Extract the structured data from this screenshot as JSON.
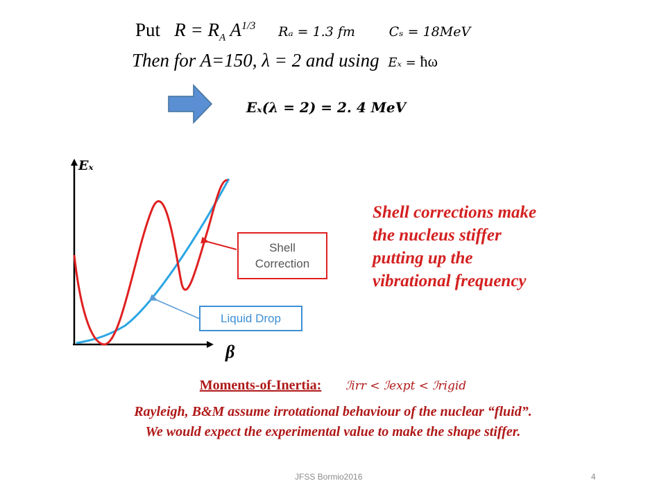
{
  "heading": {
    "put_word": "Put",
    "formula_R": "R = R",
    "sub_A": "A",
    "formula_A": " A",
    "sup_exp": "1/3",
    "RA_value": "Rₐ = 1.3 fm",
    "Cs_value": "Cₛ = 18MeV"
  },
  "then_line": {
    "text": "Then for  A=150,  λ = 2  and using",
    "Ex_eq": "Eₓ = ",
    "hbar_omega": "ħω"
  },
  "result": {
    "text": "Eₓ(λ = 2) = 2. 4 MeV"
  },
  "plot": {
    "y_label": "Eₓ",
    "x_label": "β",
    "colors": {
      "shell": "#e02020",
      "liquid": "#2ba6e4",
      "axis": "#000000",
      "arrow": "#4f86c6"
    }
  },
  "callouts": {
    "shell_line1": "Shell",
    "shell_line2": "Correction",
    "liquid_drop": "Liquid Drop"
  },
  "note": {
    "line1": "Shell corrections make",
    "line2": "the nucleus stiffer",
    "line3": "putting up the",
    "line4": "vibrational frequency"
  },
  "moments": {
    "label": "Moments-of-Inertia:",
    "relation": "ℐirr < ℐexpt < ℐrigid"
  },
  "rayleigh": {
    "line1": "Rayleigh, B&M assume irrotational behaviour of the nuclear “fluid”.",
    "line2": "We would expect the experimental value to make the shape stiffer."
  },
  "footer": {
    "source": "JFSS  Bormio2016",
    "page_number": "4"
  }
}
